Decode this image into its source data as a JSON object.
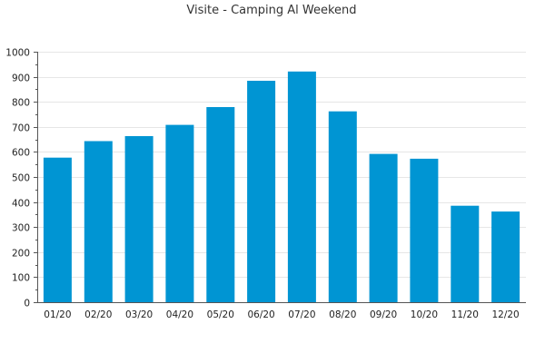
{
  "chart_data": {
    "type": "bar",
    "title": "Visite - Camping Al Weekend",
    "xlabel": "",
    "ylabel": "",
    "categories": [
      "01/20",
      "02/20",
      "03/20",
      "04/20",
      "05/20",
      "06/20",
      "07/20",
      "08/20",
      "09/20",
      "10/20",
      "11/20",
      "12/20"
    ],
    "values": [
      577,
      643,
      663,
      708,
      779,
      884,
      921,
      762,
      592,
      573,
      385,
      362
    ],
    "ylim": [
      0,
      1000
    ],
    "yticks": [
      0,
      100,
      200,
      300,
      400,
      500,
      600,
      700,
      800,
      900,
      1000
    ],
    "grid": true,
    "legend": "none",
    "bar_color": "#0095d3"
  }
}
